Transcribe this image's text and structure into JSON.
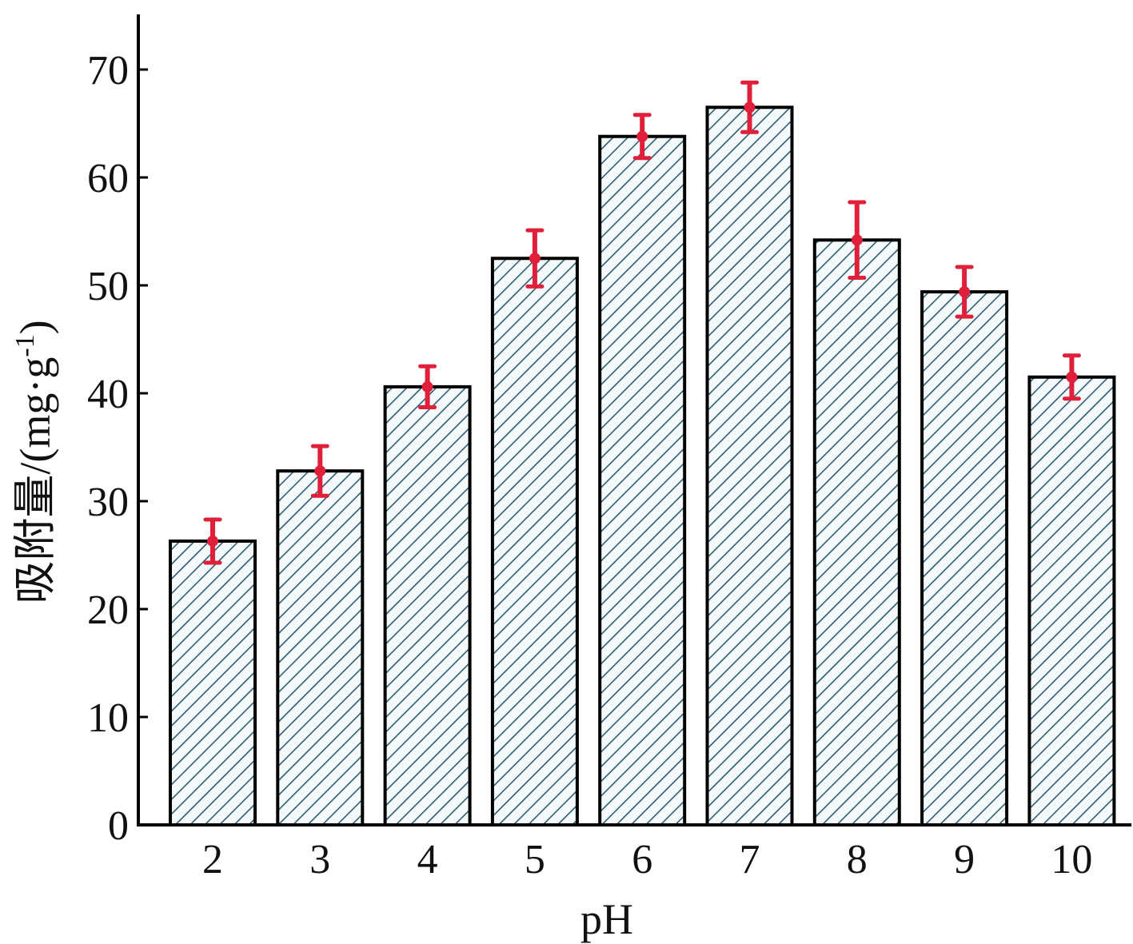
{
  "chart_data": {
    "type": "bar",
    "title": "",
    "xlabel": "pH",
    "ylabel": "吸附量/(mg·g-1)",
    "ylabel_parts": {
      "main": "吸附量/(mg·g",
      "superscript": "-1",
      "close": ")"
    },
    "categories": [
      "2",
      "3",
      "4",
      "5",
      "6",
      "7",
      "8",
      "9",
      "10"
    ],
    "values": [
      26.3,
      32.8,
      40.6,
      52.5,
      63.8,
      66.5,
      54.2,
      49.4,
      41.5
    ],
    "errors": [
      2.0,
      2.3,
      1.9,
      2.6,
      2.0,
      2.3,
      3.5,
      2.3,
      2.0
    ],
    "yticks": [
      0,
      10,
      20,
      30,
      40,
      50,
      60,
      70
    ],
    "ylim": [
      0,
      75
    ],
    "grid": false,
    "legend": "none",
    "colors": {
      "bar_fill": "#f4fafc",
      "hatch": "#2f5d6e",
      "bar_edge": "#000000",
      "error_bar": "#e0203a",
      "axis": "#000000"
    }
  }
}
